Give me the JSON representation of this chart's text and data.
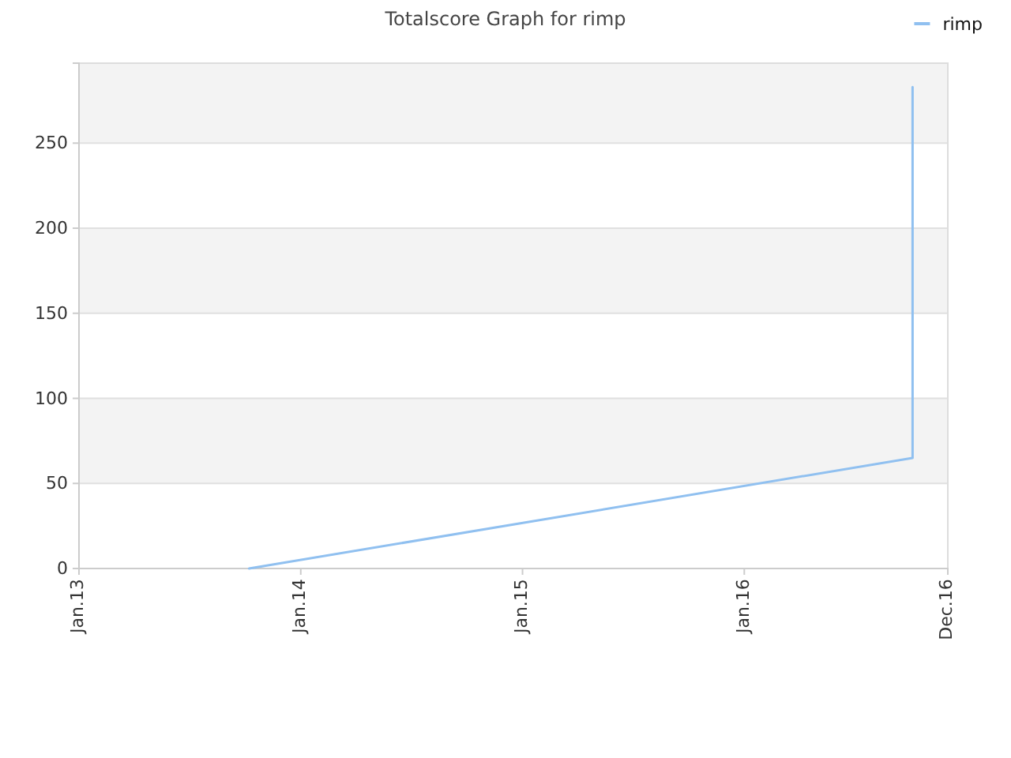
{
  "chart_data": {
    "type": "line",
    "title": "Totalscore Graph for rimp",
    "x": [
      "2013-10-08",
      "2016-10-04",
      "2016-10-04"
    ],
    "series": [
      {
        "name": "rimp",
        "color": "#90c0f0",
        "values": [
          0,
          65,
          283
        ]
      }
    ],
    "xlim": [
      "2013-01-01",
      "2016-12-01"
    ],
    "xticks": [
      {
        "value": "2013-01-01",
        "label": "Jan.13"
      },
      {
        "value": "2014-01-01",
        "label": "Jan.14"
      },
      {
        "value": "2015-01-01",
        "label": "Jan.15"
      },
      {
        "value": "2016-01-01",
        "label": "Jan.16"
      },
      {
        "value": "2016-12-01",
        "label": "Dec.16"
      }
    ],
    "ylim": [
      0,
      297
    ],
    "yticks": [
      0,
      50,
      100,
      150,
      200,
      250
    ],
    "grid": "y",
    "legend": "top right",
    "marker": "none",
    "line_style": "solid"
  }
}
